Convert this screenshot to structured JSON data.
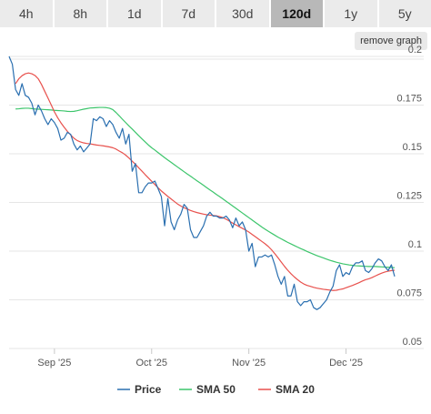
{
  "timeframes": [
    "4h",
    "8h",
    "1d",
    "7d",
    "30d",
    "120d",
    "1y",
    "5y"
  ],
  "active_timeframe": "120d",
  "remove_graph_label": "remove graph",
  "colors": {
    "price": "#2a6fb0",
    "sma50": "#3cc56b",
    "sma20": "#e8514d",
    "grid": "#e6e6e6",
    "active_tab": "#b8b8b8",
    "tab": "#ebebeb"
  },
  "chart_data": {
    "type": "line",
    "x": [
      "Aug 22",
      "Aug 23",
      "Aug 24",
      "Aug 25",
      "Aug 26",
      "Aug 27",
      "Aug 28",
      "Aug 29",
      "Aug 30",
      "Aug 31",
      "Sep 1",
      "Sep 2",
      "Sep 3",
      "Sep 4",
      "Sep 5",
      "Sep 6",
      "Sep 7",
      "Sep 8",
      "Sep 9",
      "Sep 10",
      "Sep 11",
      "Sep 12",
      "Sep 13",
      "Sep 14",
      "Sep 15",
      "Sep 16",
      "Sep 17",
      "Sep 18",
      "Sep 19",
      "Sep 20",
      "Sep 21",
      "Sep 22",
      "Sep 23",
      "Sep 24",
      "Sep 25",
      "Sep 26",
      "Sep 27",
      "Sep 28",
      "Sep 29",
      "Sep 30",
      "Oct 1",
      "Oct 2",
      "Oct 3",
      "Oct 4",
      "Oct 5",
      "Oct 6",
      "Oct 7",
      "Oct 8",
      "Oct 9",
      "Oct 10",
      "Oct 11",
      "Oct 12",
      "Oct 13",
      "Oct 14",
      "Oct 15",
      "Oct 16",
      "Oct 17",
      "Oct 18",
      "Oct 19",
      "Oct 20",
      "Oct 21",
      "Oct 22",
      "Oct 23",
      "Oct 24",
      "Oct 25",
      "Oct 26",
      "Oct 27",
      "Oct 28",
      "Oct 29",
      "Oct 30",
      "Oct 31",
      "Nov 1",
      "Nov 2",
      "Nov 3",
      "Nov 4",
      "Nov 5",
      "Nov 6",
      "Nov 7",
      "Nov 8",
      "Nov 9",
      "Nov 10",
      "Nov 11",
      "Nov 12",
      "Nov 13",
      "Nov 14",
      "Nov 15",
      "Nov 16",
      "Nov 17",
      "Nov 18",
      "Nov 19",
      "Nov 20",
      "Nov 21",
      "Nov 22",
      "Nov 23",
      "Nov 24",
      "Nov 25",
      "Nov 26",
      "Nov 27",
      "Nov 28",
      "Nov 29",
      "Nov 30",
      "Dec 1",
      "Dec 2",
      "Dec 3",
      "Dec 4",
      "Dec 5",
      "Dec 6",
      "Dec 7",
      "Dec 8",
      "Dec 9",
      "Dec 10",
      "Dec 11",
      "Dec 12",
      "Dec 13",
      "Dec 14",
      "Dec 15",
      "Dec 16",
      "Dec 17",
      "Dec 18",
      "Dec 19"
    ],
    "series": [
      {
        "name": "Price",
        "values": [
          0.2,
          0.196,
          0.183,
          0.18,
          0.186,
          0.18,
          0.179,
          0.176,
          0.17,
          0.175,
          0.172,
          0.168,
          0.165,
          0.168,
          0.166,
          0.163,
          0.157,
          0.158,
          0.161,
          0.16,
          0.155,
          0.152,
          0.154,
          0.151,
          0.153,
          0.155,
          0.168,
          0.167,
          0.169,
          0.168,
          0.164,
          0.167,
          0.165,
          0.161,
          0.158,
          0.163,
          0.155,
          0.16,
          0.141,
          0.145,
          0.13,
          0.13,
          0.133,
          0.135,
          0.135,
          0.136,
          0.132,
          0.128,
          0.113,
          0.127,
          0.115,
          0.111,
          0.116,
          0.119,
          0.124,
          0.122,
          0.111,
          0.107,
          0.107,
          0.11,
          0.113,
          0.118,
          0.12,
          0.118,
          0.118,
          0.117,
          0.117,
          0.118,
          0.116,
          0.112,
          0.117,
          0.113,
          0.115,
          0.111,
          0.1,
          0.104,
          0.092,
          0.097,
          0.097,
          0.098,
          0.097,
          0.098,
          0.093,
          0.087,
          0.083,
          0.087,
          0.077,
          0.077,
          0.083,
          0.074,
          0.072,
          0.074,
          0.074,
          0.075,
          0.071,
          0.07,
          0.071,
          0.073,
          0.075,
          0.079,
          0.082,
          0.09,
          0.093,
          0.087,
          0.089,
          0.088,
          0.092,
          0.094,
          0.094,
          0.095,
          0.09,
          0.089,
          0.091,
          0.094,
          0.096,
          0.095,
          0.092,
          0.09,
          0.093,
          0.087
        ]
      },
      {
        "name": "SMA 50",
        "values": [
          null,
          null,
          0.173,
          0.1731,
          0.1733,
          0.1734,
          0.1734,
          0.1732,
          0.173,
          0.1729,
          0.1728,
          0.1727,
          0.1726,
          0.1725,
          0.1723,
          0.1722,
          0.1721,
          0.172,
          0.1718,
          0.1717,
          0.1718,
          0.1721,
          0.1725,
          0.1729,
          0.1732,
          0.1735,
          0.1736,
          0.1737,
          0.1738,
          0.1738,
          0.1737,
          0.1734,
          0.1727,
          0.1712,
          0.1695,
          0.1677,
          0.166,
          0.1643,
          0.1627,
          0.161,
          0.1593,
          0.1577,
          0.1561,
          0.1545,
          0.1531,
          0.1519,
          0.1506,
          0.1493,
          0.148,
          0.1468,
          0.1456,
          0.1444,
          0.1432,
          0.142,
          0.1408,
          0.1396,
          0.1385,
          0.1373,
          0.1361,
          0.135,
          0.1338,
          0.1326,
          0.1314,
          0.1303,
          0.1291,
          0.128,
          0.1268,
          0.1256,
          0.1244,
          0.1232,
          0.122,
          0.1208,
          0.1196,
          0.1184,
          0.1172,
          0.116,
          0.1148,
          0.1136,
          0.1124,
          0.1113,
          0.1102,
          0.1092,
          0.1082,
          0.1072,
          0.1063,
          0.1054,
          0.1045,
          0.1037,
          0.1029,
          0.1021,
          0.1013,
          0.1006,
          0.0998,
          0.0991,
          0.0984,
          0.0977,
          0.0971,
          0.0965,
          0.0959,
          0.0953,
          0.0948,
          0.0943,
          0.0939,
          0.0935,
          0.0932,
          0.0929,
          0.0927,
          0.0925,
          0.0924,
          0.0923,
          0.0922,
          0.0921,
          0.0921,
          0.0921,
          0.092,
          0.0919,
          0.0918,
          0.0917,
          0.0916,
          0.0915
        ]
      },
      {
        "name": "SMA 20",
        "values": [
          null,
          null,
          0.186,
          0.1885,
          0.1901,
          0.1911,
          0.1915,
          0.1911,
          0.1902,
          0.1885,
          0.1856,
          0.1821,
          0.1786,
          0.1751,
          0.1715,
          0.1685,
          0.1659,
          0.1636,
          0.1615,
          0.1597,
          0.158,
          0.1568,
          0.1561,
          0.1556,
          0.1553,
          0.1551,
          0.1548,
          0.1545,
          0.1543,
          0.1541,
          0.1538,
          0.1535,
          0.1531,
          0.1524,
          0.1514,
          0.1505,
          0.1493,
          0.1478,
          0.1462,
          0.1446,
          0.1428,
          0.1411,
          0.1393,
          0.1376,
          0.1359,
          0.1342,
          0.1325,
          0.1309,
          0.1295,
          0.1281,
          0.1268,
          0.1255,
          0.1242,
          0.1232,
          0.1223,
          0.1216,
          0.1209,
          0.1203,
          0.1198,
          0.1194,
          0.119,
          0.1187,
          0.1185,
          0.1183,
          0.1181,
          0.1177,
          0.1172,
          0.1164,
          0.1154,
          0.1144,
          0.1135,
          0.1126,
          0.1117,
          0.1108,
          0.1098,
          0.1086,
          0.1074,
          0.1062,
          0.105,
          0.1038,
          0.1024,
          0.1007,
          0.0987,
          0.0966,
          0.0944,
          0.0922,
          0.0902,
          0.0884,
          0.0868,
          0.0854,
          0.0841,
          0.0831,
          0.0824,
          0.0819,
          0.0814,
          0.081,
          0.0807,
          0.0804,
          0.0802,
          0.08,
          0.0798,
          0.0799,
          0.0803,
          0.0806,
          0.0812,
          0.0818,
          0.0824,
          0.0831,
          0.0838,
          0.0846,
          0.0853,
          0.0858,
          0.0864,
          0.0872,
          0.088,
          0.0887,
          0.0893,
          0.0897,
          0.09,
          0.0902
        ]
      }
    ],
    "x_ticks": [
      {
        "label": "Sep '25",
        "date": "Sep 5"
      },
      {
        "label": "Oct '25",
        "date": "Oct 5"
      },
      {
        "label": "Nov '25",
        "date": "Nov 4"
      },
      {
        "label": "Dec '25",
        "date": "Dec 4"
      }
    ],
    "y_ticks": [
      0.05,
      0.075,
      0.1,
      0.125,
      0.15,
      0.175,
      0.2
    ],
    "ylim": [
      0.05,
      0.2
    ],
    "y_axis_side": "right",
    "grid": "horizontal",
    "legend_position": "bottom"
  }
}
